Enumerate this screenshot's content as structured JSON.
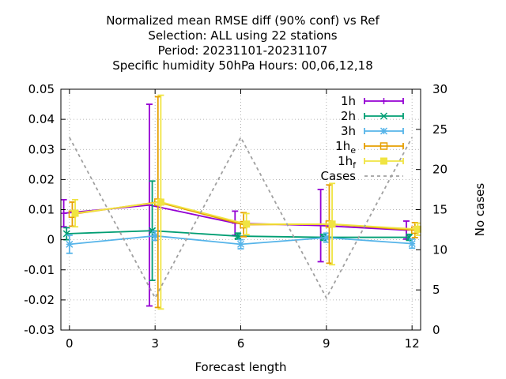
{
  "chart_data": {
    "type": "line",
    "title": [
      "Normalized mean RMSE diff (90% conf) vs Ref",
      "Selection: ALL using    22 stations",
      "Period: 20231101-20231107",
      "Specific humidity 50hPa   Hours:  00,06,12,18"
    ],
    "xlabel": "Forecast length",
    "ylabel": "",
    "y2label": "No cases",
    "xlim": [
      -0.3,
      12.3
    ],
    "ylim": [
      -0.03,
      0.05
    ],
    "y2lim": [
      0,
      30
    ],
    "xticks": [
      0,
      3,
      6,
      9,
      12
    ],
    "yticks": [
      -0.03,
      -0.02,
      -0.01,
      0,
      0.01,
      0.02,
      0.03,
      0.04,
      0.05
    ],
    "ytick_labels": [
      "-0.03",
      "-0.02",
      "-0.01",
      "0",
      "0.01",
      "0.02",
      "0.03",
      "0.04",
      "0.05"
    ],
    "y2ticks": [
      0,
      5,
      10,
      15,
      20,
      25,
      30
    ],
    "grid": true,
    "legend_position": "top-right",
    "series": [
      {
        "name": "1h",
        "color": "#9400d3",
        "marker": "plus",
        "axis": "y",
        "x": [
          -0.2,
          2.8,
          5.8,
          8.8,
          11.8
        ],
        "y": [
          0.0088,
          0.0115,
          0.0055,
          0.0047,
          0.0032
        ],
        "err": [
          0.0045,
          0.0335,
          0.004,
          0.012,
          0.003
        ]
      },
      {
        "name": "2h",
        "color": "#009e73",
        "marker": "x",
        "axis": "y",
        "x": [
          -0.1,
          2.9,
          5.9,
          8.9,
          11.9
        ],
        "y": [
          0.002,
          0.003,
          0.0012,
          0.0008,
          0.0008
        ],
        "err": [
          0.002,
          0.0165,
          0.001,
          0.001,
          0.001
        ]
      },
      {
        "name": "3h",
        "color": "#56b4e9",
        "marker": "star",
        "axis": "y",
        "x": [
          0,
          3,
          6,
          9,
          12
        ],
        "y": [
          -0.0015,
          0.0013,
          -0.0015,
          0.0007,
          -0.0013
        ],
        "err": [
          0.003,
          0.0015,
          0.0015,
          0.0015,
          0.0015
        ]
      },
      {
        "name": "1h",
        "subscript": "e",
        "color": "#e69f00",
        "marker": "box",
        "axis": "y",
        "x": [
          0.1,
          3.1,
          6.1,
          9.1,
          12.1
        ],
        "y": [
          0.0085,
          0.0125,
          0.005,
          0.0052,
          0.0032
        ],
        "err": [
          0.004,
          0.035,
          0.004,
          0.013,
          0.0025
        ]
      },
      {
        "name": "1h",
        "subscript": "f",
        "color": "#f0e442",
        "marker": "filled-box",
        "axis": "y",
        "x": [
          0.2,
          3.2,
          6.2,
          9.2,
          12.2
        ],
        "y": [
          0.0088,
          0.0125,
          0.0052,
          0.0052,
          0.0035
        ],
        "err": [
          0.0045,
          0.0355,
          0.0035,
          0.0135,
          0.002
        ]
      },
      {
        "name": "Cases",
        "color": "#a0a0a0",
        "dashed": true,
        "axis": "y2",
        "x": [
          0,
          3,
          6,
          9,
          12
        ],
        "y": [
          24,
          4,
          24,
          4,
          24
        ]
      }
    ]
  }
}
